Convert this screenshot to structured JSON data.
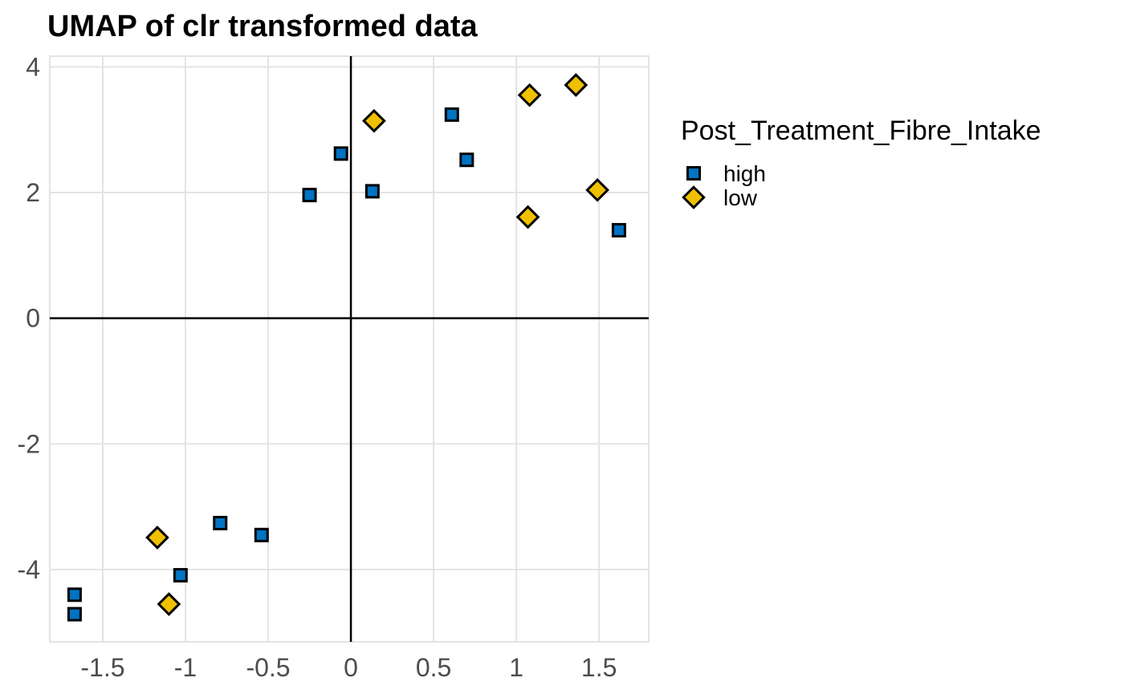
{
  "title": "UMAP of clr transformed data",
  "colors": {
    "high": "#0073C2",
    "low": "#EFC000",
    "marker_stroke": "#000000",
    "grid": "#E3E3E3",
    "panel_border": "#E3E3E3",
    "zero_line": "#000000",
    "axis_text": "#4D4D4D",
    "background": "#FFFFFF"
  },
  "legend": {
    "title": "Post_Treatment_Fibre_Intake",
    "position": "right",
    "items": [
      {
        "label": "high",
        "series": "high",
        "shape": "square"
      },
      {
        "label": "low",
        "series": "low",
        "shape": "diamond"
      }
    ]
  },
  "chart_data": {
    "type": "scatter",
    "title": "UMAP of clr transformed data",
    "xlabel": "",
    "ylabel": "",
    "xlim": [
      -1.82,
      1.8
    ],
    "ylim": [
      -5.15,
      4.17
    ],
    "x_ticks": [
      -1.5,
      -1,
      -0.5,
      0,
      0.5,
      1,
      1.5
    ],
    "x_tick_labels": [
      "-1.5",
      "-1",
      "-0.5",
      "0",
      "0.5",
      "1",
      "1.5"
    ],
    "y_ticks": [
      -4,
      -2,
      0,
      2,
      4
    ],
    "y_tick_labels": [
      "-4",
      "-2",
      "0",
      "2",
      "4"
    ],
    "grid": true,
    "zero_lines": true,
    "legend_position": "right",
    "series": [
      {
        "name": "high",
        "marker": "square",
        "color": "#0073C2",
        "points": [
          [
            0.61,
            3.24
          ],
          [
            -0.06,
            2.62
          ],
          [
            0.7,
            2.52
          ],
          [
            -0.25,
            1.96
          ],
          [
            0.13,
            2.02
          ],
          [
            1.62,
            1.4
          ],
          [
            -0.79,
            -3.26
          ],
          [
            -0.54,
            -3.45
          ],
          [
            -1.03,
            -4.09
          ],
          [
            -1.67,
            -4.4
          ],
          [
            -1.67,
            -4.71
          ]
        ]
      },
      {
        "name": "low",
        "marker": "diamond",
        "color": "#EFC000",
        "points": [
          [
            0.14,
            3.14
          ],
          [
            1.08,
            3.55
          ],
          [
            1.36,
            3.71
          ],
          [
            1.49,
            2.04
          ],
          [
            1.07,
            1.61
          ],
          [
            -1.17,
            -3.49
          ],
          [
            -1.1,
            -4.55
          ]
        ]
      }
    ]
  }
}
